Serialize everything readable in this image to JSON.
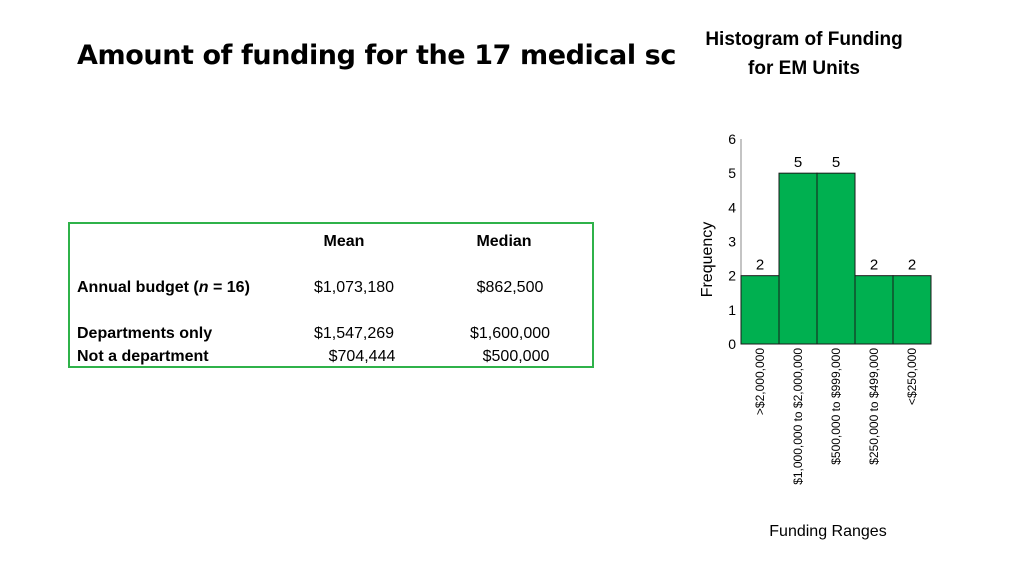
{
  "slide": {
    "title": "Amount of funding for the 17 medical sc"
  },
  "stats_table": {
    "headers": [
      "Mean",
      "Median"
    ],
    "rows": [
      {
        "label_prefix": "Annual budget (",
        "label_italic": "n",
        "label_suffix": " = 16)",
        "mean": "$1,073,180",
        "median": "$862,500"
      },
      {
        "label": "Departments only",
        "mean": "$1,547,269",
        "median": "$1,600,000"
      },
      {
        "label": "Not a department",
        "mean": "$704,444",
        "median": "$500,000"
      }
    ],
    "border_color": "#2fb24a"
  },
  "chart_data": {
    "type": "bar",
    "title": "Histogram of Funding for EM Units",
    "xlabel": "Funding Ranges",
    "ylabel": "Frequency",
    "categories": [
      ">$2,000,000",
      "$1,000,000 to $2,000,000",
      "$500,000 to $999,000",
      "$250,000 to $499,000",
      "<$250,000"
    ],
    "values": [
      2,
      5,
      5,
      2,
      2
    ],
    "ylim": [
      0,
      6
    ],
    "yticks": [
      "0",
      "1",
      "2",
      "3",
      "4",
      "5",
      "6"
    ],
    "data_labels": [
      "2",
      "5",
      "5",
      "2",
      "2"
    ],
    "bar_color": "#00b050",
    "grid": false,
    "legend": "none"
  }
}
